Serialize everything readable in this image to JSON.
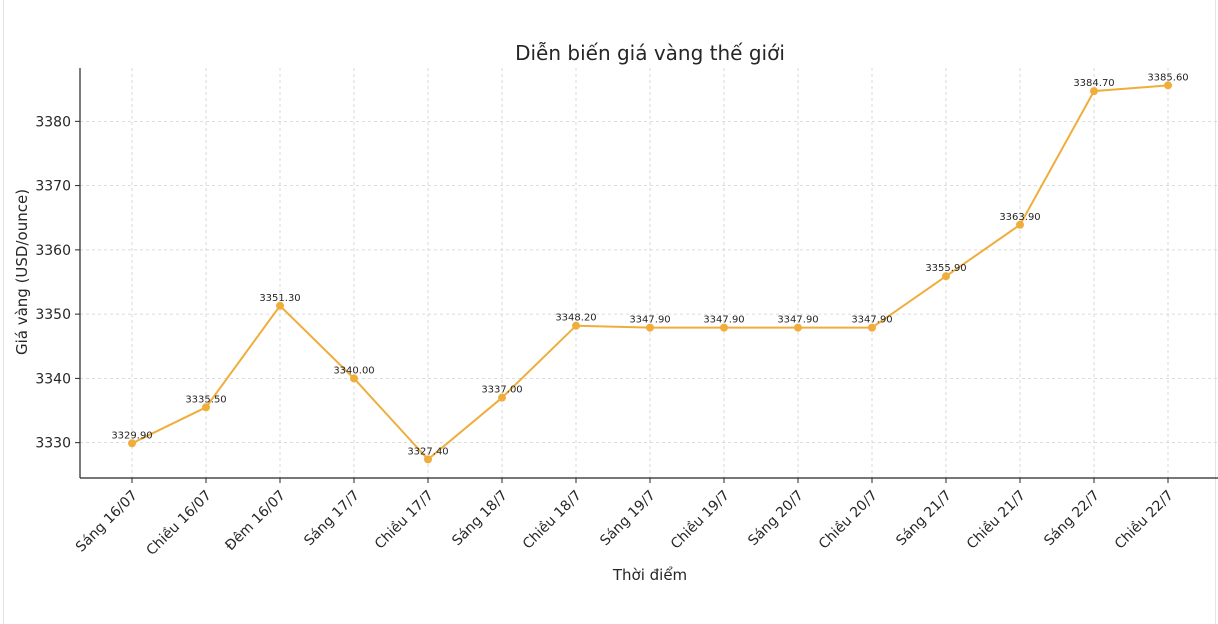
{
  "chart_data": {
    "type": "line",
    "title": "Diễn biến giá vàng thế giới",
    "xlabel": "Thời điểm",
    "ylabel": "Giá vàng (USD/ounce)",
    "categories": [
      "Sáng 16/07",
      "Chiều 16/07",
      "Đêm 16/07",
      "Sáng 17/7",
      "Chiều 17/7",
      "Sáng 18/7",
      "Chiều 18/7",
      "Sáng 19/7",
      "Chiều 19/7",
      "Sáng 20/7",
      "Chiều 20/7",
      "Sáng 21/7",
      "Chiều 21/7",
      "Sáng 22/7",
      "Chiều 22/7"
    ],
    "series": [
      {
        "values": [
          3329.9,
          3335.5,
          3351.3,
          3340.0,
          3327.4,
          3337.0,
          3348.2,
          3347.9,
          3347.9,
          3347.9,
          3347.9,
          3355.9,
          3363.9,
          3384.7,
          3385.6
        ],
        "labels": [
          "3329.90",
          "3335.50",
          "3351.30",
          "3340.00",
          "3327.40",
          "3337.00",
          "3348.20",
          "3347.90",
          "3347.90",
          "3347.90",
          "3347.90",
          "3355.90",
          "3363.90",
          "3384.70",
          "3385.60"
        ],
        "color": "#f0ad3c"
      }
    ],
    "ylim": [
      3324.5,
      3388.3
    ],
    "yticks": [
      3330,
      3340,
      3350,
      3360,
      3370,
      3380
    ],
    "grid": true,
    "legend": "none"
  }
}
